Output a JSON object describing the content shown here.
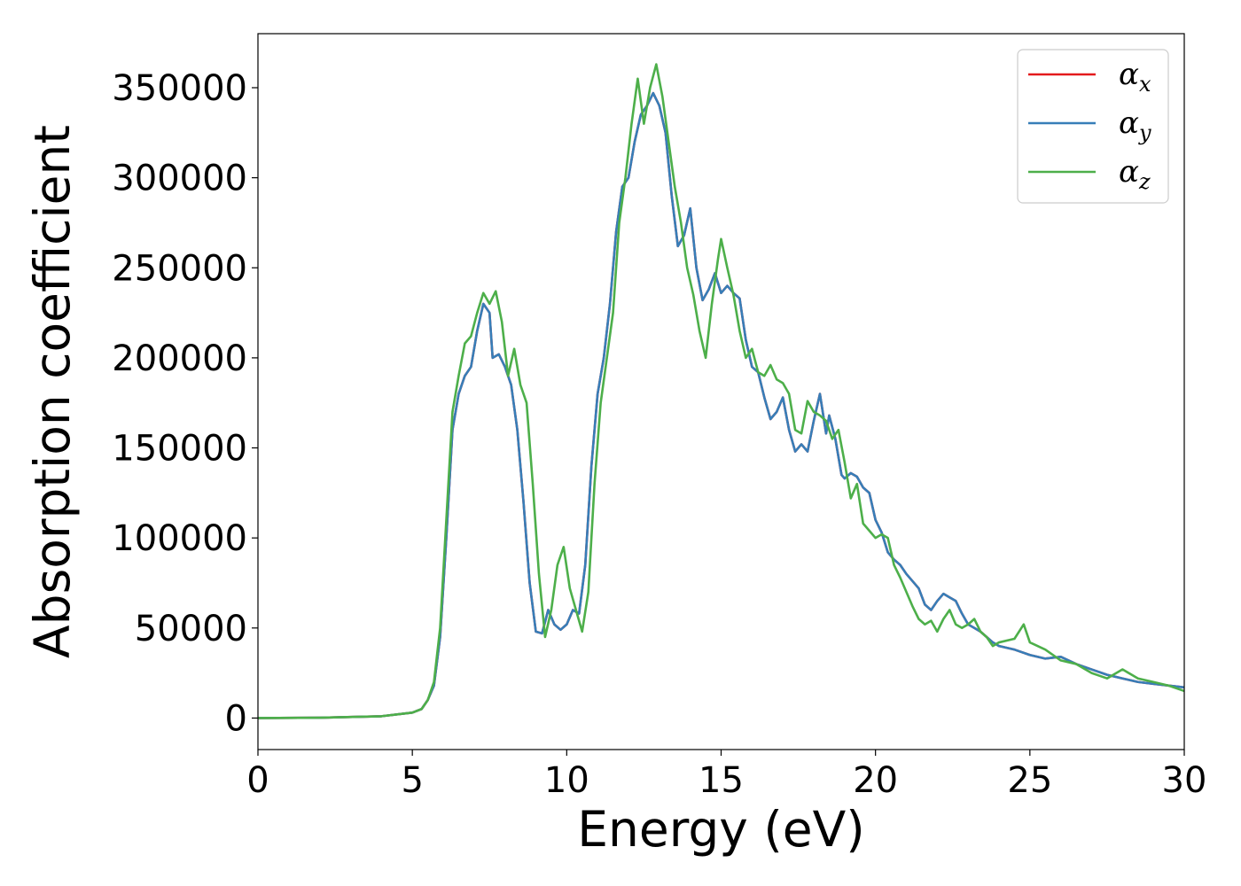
{
  "chart_data": {
    "type": "line",
    "xlabel": "Energy (eV)",
    "ylabel": "Absorption coefficient",
    "xlim": [
      0,
      30
    ],
    "ylim": [
      -17500,
      380000
    ],
    "xticks": [
      0,
      5,
      10,
      15,
      20,
      25,
      30
    ],
    "yticks": [
      0,
      50000,
      100000,
      150000,
      200000,
      250000,
      300000,
      350000
    ],
    "grid": false,
    "legend_position": "top-right",
    "series": [
      {
        "name": "α_x",
        "symbol": "α",
        "subscript": "x",
        "color": "#e41a1c",
        "x": [
          0,
          2,
          4,
          5,
          5.3,
          5.5,
          5.7,
          5.9,
          6.1,
          6.3,
          6.5,
          6.7,
          6.9,
          7.1,
          7.3,
          7.5,
          7.6,
          7.8,
          8.0,
          8.2,
          8.4,
          8.6,
          8.8,
          9.0,
          9.2,
          9.4,
          9.6,
          9.8,
          10.0,
          10.2,
          10.4,
          10.6,
          10.8,
          11.0,
          11.2,
          11.4,
          11.6,
          11.8,
          12.0,
          12.2,
          12.4,
          12.6,
          12.8,
          13.0,
          13.2,
          13.4,
          13.6,
          13.8,
          14.0,
          14.2,
          14.4,
          14.6,
          14.8,
          15.0,
          15.2,
          15.4,
          15.6,
          15.8,
          16.0,
          16.2,
          16.4,
          16.6,
          16.8,
          17.0,
          17.2,
          17.4,
          17.6,
          17.8,
          18.0,
          18.2,
          18.4,
          18.5,
          18.7,
          18.9,
          19.0,
          19.2,
          19.4,
          19.6,
          19.8,
          20.0,
          20.2,
          20.4,
          20.6,
          20.8,
          21.0,
          21.2,
          21.4,
          21.6,
          21.8,
          22.0,
          22.2,
          22.4,
          22.6,
          22.8,
          23.0,
          23.2,
          23.4,
          23.6,
          23.8,
          24.0,
          24.5,
          25.0,
          25.5,
          26.0,
          26.5,
          27.0,
          27.5,
          28.0,
          28.5,
          29.0,
          29.5,
          30.0
        ],
        "y": [
          0,
          200,
          1000,
          3000,
          5000,
          10000,
          18000,
          45000,
          100000,
          160000,
          180000,
          190000,
          195000,
          215000,
          230000,
          225000,
          200000,
          202000,
          195000,
          185000,
          160000,
          120000,
          75000,
          48000,
          47000,
          60000,
          52000,
          49000,
          52000,
          60000,
          58000,
          85000,
          140000,
          180000,
          200000,
          230000,
          270000,
          295000,
          300000,
          320000,
          335000,
          340000,
          347000,
          340000,
          325000,
          290000,
          262000,
          268000,
          283000,
          250000,
          232000,
          238000,
          247000,
          236000,
          240000,
          236000,
          233000,
          210000,
          195000,
          192000,
          178000,
          166000,
          170000,
          178000,
          160000,
          148000,
          152000,
          148000,
          165000,
          180000,
          158000,
          168000,
          155000,
          135000,
          133000,
          136000,
          134000,
          128000,
          125000,
          110000,
          103000,
          92000,
          88000,
          85000,
          80000,
          76000,
          72000,
          63000,
          60000,
          65000,
          69000,
          67000,
          65000,
          58000,
          52000,
          50000,
          48000,
          45000,
          42000,
          40000,
          38000,
          35000,
          33000,
          34000,
          30000,
          27000,
          24000,
          22000,
          20000,
          19000,
          18000,
          17000
        ]
      },
      {
        "name": "α_y",
        "symbol": "α",
        "subscript": "y",
        "color": "#377eb8",
        "x": [
          0,
          2,
          4,
          5,
          5.3,
          5.5,
          5.7,
          5.9,
          6.1,
          6.3,
          6.5,
          6.7,
          6.9,
          7.1,
          7.3,
          7.5,
          7.6,
          7.8,
          8.0,
          8.2,
          8.4,
          8.6,
          8.8,
          9.0,
          9.2,
          9.4,
          9.6,
          9.8,
          10.0,
          10.2,
          10.4,
          10.6,
          10.8,
          11.0,
          11.2,
          11.4,
          11.6,
          11.8,
          12.0,
          12.2,
          12.4,
          12.6,
          12.8,
          13.0,
          13.2,
          13.4,
          13.6,
          13.8,
          14.0,
          14.2,
          14.4,
          14.6,
          14.8,
          15.0,
          15.2,
          15.4,
          15.6,
          15.8,
          16.0,
          16.2,
          16.4,
          16.6,
          16.8,
          17.0,
          17.2,
          17.4,
          17.6,
          17.8,
          18.0,
          18.2,
          18.4,
          18.5,
          18.7,
          18.9,
          19.0,
          19.2,
          19.4,
          19.6,
          19.8,
          20.0,
          20.2,
          20.4,
          20.6,
          20.8,
          21.0,
          21.2,
          21.4,
          21.6,
          21.8,
          22.0,
          22.2,
          22.4,
          22.6,
          22.8,
          23.0,
          23.2,
          23.4,
          23.6,
          23.8,
          24.0,
          24.5,
          25.0,
          25.5,
          26.0,
          26.5,
          27.0,
          27.5,
          28.0,
          28.5,
          29.0,
          29.5,
          30.0
        ],
        "y": [
          0,
          200,
          1000,
          3000,
          5000,
          10000,
          18000,
          45000,
          100000,
          160000,
          180000,
          190000,
          195000,
          215000,
          230000,
          225000,
          200000,
          202000,
          195000,
          185000,
          160000,
          120000,
          75000,
          48000,
          47000,
          60000,
          52000,
          49000,
          52000,
          60000,
          58000,
          85000,
          140000,
          180000,
          200000,
          230000,
          270000,
          295000,
          300000,
          320000,
          335000,
          340000,
          347000,
          340000,
          325000,
          290000,
          262000,
          268000,
          283000,
          250000,
          232000,
          238000,
          247000,
          236000,
          240000,
          236000,
          233000,
          210000,
          195000,
          192000,
          178000,
          166000,
          170000,
          178000,
          160000,
          148000,
          152000,
          148000,
          165000,
          180000,
          158000,
          168000,
          155000,
          135000,
          133000,
          136000,
          134000,
          128000,
          125000,
          110000,
          103000,
          92000,
          88000,
          85000,
          80000,
          76000,
          72000,
          63000,
          60000,
          65000,
          69000,
          67000,
          65000,
          58000,
          52000,
          50000,
          48000,
          45000,
          42000,
          40000,
          38000,
          35000,
          33000,
          34000,
          30000,
          27000,
          24000,
          22000,
          20000,
          19000,
          18000,
          17000
        ]
      },
      {
        "name": "α_z",
        "symbol": "α",
        "subscript": "z",
        "color": "#4daf4a",
        "x": [
          0,
          2,
          4,
          5,
          5.3,
          5.5,
          5.7,
          5.9,
          6.1,
          6.3,
          6.5,
          6.7,
          6.9,
          7.1,
          7.3,
          7.5,
          7.7,
          7.9,
          8.1,
          8.3,
          8.5,
          8.7,
          8.9,
          9.1,
          9.3,
          9.5,
          9.7,
          9.9,
          10.1,
          10.3,
          10.5,
          10.7,
          10.9,
          11.1,
          11.3,
          11.5,
          11.7,
          11.9,
          12.1,
          12.3,
          12.5,
          12.7,
          12.9,
          13.1,
          13.3,
          13.5,
          13.7,
          13.9,
          14.1,
          14.3,
          14.5,
          14.7,
          14.9,
          15.0,
          15.2,
          15.4,
          15.6,
          15.8,
          16.0,
          16.2,
          16.4,
          16.6,
          16.8,
          17.0,
          17.2,
          17.4,
          17.6,
          17.8,
          18.0,
          18.2,
          18.4,
          18.6,
          18.8,
          19.0,
          19.2,
          19.4,
          19.6,
          19.8,
          20.0,
          20.2,
          20.4,
          20.6,
          20.8,
          21.0,
          21.2,
          21.4,
          21.6,
          21.8,
          22.0,
          22.2,
          22.4,
          22.6,
          22.8,
          23.0,
          23.2,
          23.4,
          23.6,
          23.8,
          24.0,
          24.5,
          24.8,
          25.0,
          25.5,
          26.0,
          26.5,
          27.0,
          27.5,
          28.0,
          28.5,
          29.0,
          29.5,
          30.0
        ],
        "y": [
          0,
          200,
          1000,
          3000,
          5000,
          10000,
          20000,
          50000,
          110000,
          170000,
          190000,
          208000,
          212000,
          225000,
          236000,
          230000,
          237000,
          220000,
          190000,
          205000,
          185000,
          175000,
          130000,
          80000,
          45000,
          60000,
          85000,
          95000,
          72000,
          60000,
          48000,
          70000,
          130000,
          175000,
          200000,
          225000,
          275000,
          300000,
          330000,
          355000,
          330000,
          350000,
          363000,
          345000,
          320000,
          295000,
          275000,
          250000,
          235000,
          215000,
          200000,
          230000,
          255000,
          266000,
          250000,
          235000,
          215000,
          200000,
          205000,
          192000,
          190000,
          196000,
          188000,
          186000,
          180000,
          160000,
          158000,
          176000,
          170000,
          168000,
          165000,
          155000,
          160000,
          142000,
          122000,
          130000,
          108000,
          104000,
          100000,
          102000,
          100000,
          85000,
          78000,
          70000,
          62000,
          55000,
          52000,
          54000,
          48000,
          55000,
          60000,
          52000,
          50000,
          52000,
          55000,
          48000,
          45000,
          40000,
          42000,
          44000,
          52000,
          42000,
          38000,
          32000,
          30000,
          25000,
          22000,
          27000,
          22000,
          20000,
          18000,
          15000
        ]
      }
    ]
  }
}
